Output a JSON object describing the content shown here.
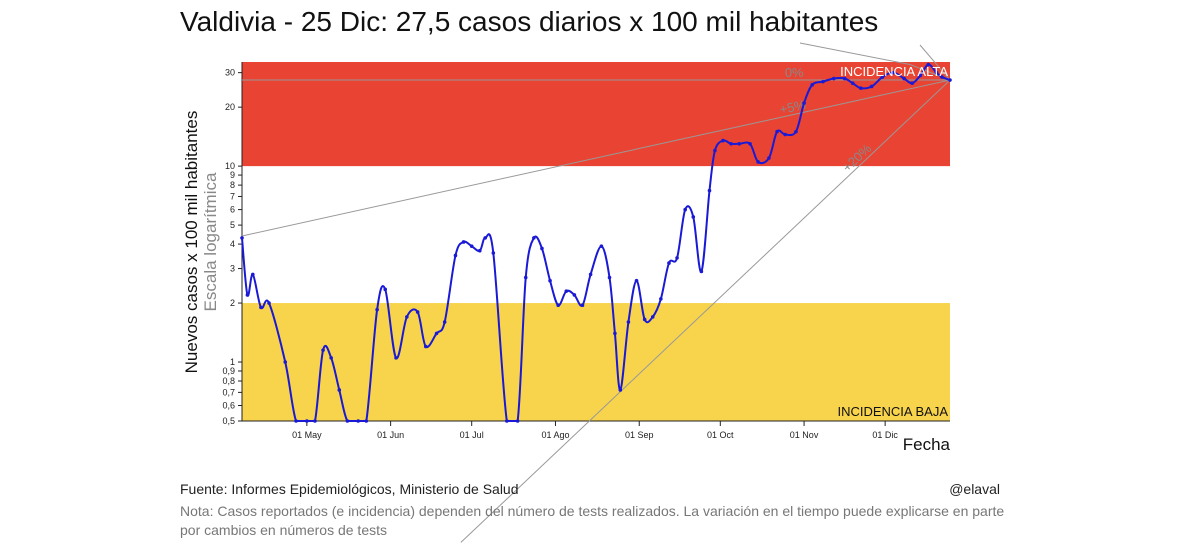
{
  "title": "Valdivia - 25 Dic: 27,5 casos diarios x 100 mil habitantes",
  "footer": {
    "source": "Fuente: Informes Epidemiológicos, Ministerio de Salud",
    "handle": "@elaval",
    "note": "Nota: Casos reportados (e incidencia) dependen del número de tests realizados. La variación en el tiempo puede explicarse en parte por cambios en números de tests"
  },
  "colors": {
    "line": "#1a1ad6",
    "high_band": "#e94433",
    "low_band": "#f7d44c",
    "ref_lines": "#999999"
  },
  "chart_data": {
    "type": "line",
    "xlabel": "Fecha",
    "ylabel": "Nuevos casos x 100 mil habitantes",
    "ylabel_sub": "Escala logarítmica",
    "yscale": "log",
    "ylim": [
      0.5,
      34
    ],
    "xlim": [
      "2020-04-07",
      "2020-12-25"
    ],
    "x_ticks": [
      {
        "label": "01 May",
        "date": "2020-05-01"
      },
      {
        "label": "01 Jun",
        "date": "2020-06-01"
      },
      {
        "label": "01 Jul",
        "date": "2020-07-01"
      },
      {
        "label": "01 Ago",
        "date": "2020-08-01"
      },
      {
        "label": "01 Sep",
        "date": "2020-09-01"
      },
      {
        "label": "01 Oct",
        "date": "2020-10-01"
      },
      {
        "label": "01 Nov",
        "date": "2020-11-01"
      },
      {
        "label": "01 Dic",
        "date": "2020-12-01"
      }
    ],
    "y_ticks": [
      {
        "label": "0,5",
        "value": 0.5
      },
      {
        "label": "0,6",
        "value": 0.6
      },
      {
        "label": "0,7",
        "value": 0.7
      },
      {
        "label": "0,8",
        "value": 0.8
      },
      {
        "label": "0,9",
        "value": 0.9
      },
      {
        "label": "1",
        "value": 1
      },
      {
        "label": "2",
        "value": 2
      },
      {
        "label": "3",
        "value": 3
      },
      {
        "label": "4",
        "value": 4
      },
      {
        "label": "5",
        "value": 5
      },
      {
        "label": "6",
        "value": 6
      },
      {
        "label": "7",
        "value": 7
      },
      {
        "label": "8",
        "value": 8
      },
      {
        "label": "9",
        "value": 9
      },
      {
        "label": "10",
        "value": 10
      },
      {
        "label": "20",
        "value": 20
      },
      {
        "label": "30",
        "value": 30
      }
    ],
    "bands": [
      {
        "label": "INCIDENCIA ALTA",
        "from": 10,
        "to": 34
      },
      {
        "label": "INCIDENCIA BAJA",
        "from": 0.5,
        "to": 2
      }
    ],
    "reference_lines": [
      {
        "label": "0%",
        "start": {
          "x": "2020-04-07",
          "y": 27.5
        },
        "end": {
          "x": "2020-12-25",
          "y": 27.5
        }
      },
      {
        "label": "+5%",
        "start": {
          "x": "2020-04-07",
          "y": 4.4
        },
        "end": {
          "x": "2020-12-25",
          "y": 27.5
        }
      },
      {
        "label": "+20%",
        "start": {
          "x": "2020-06-27",
          "y": 0.12
        },
        "end": {
          "x": "2020-12-25",
          "y": 27.5
        }
      }
    ],
    "series": [
      {
        "points": [
          {
            "x": "2020-04-07",
            "y": 4.3
          },
          {
            "x": "2020-04-09",
            "y": 2.2
          },
          {
            "x": "2020-04-11",
            "y": 2.8
          },
          {
            "x": "2020-04-14",
            "y": 1.9
          },
          {
            "x": "2020-04-17",
            "y": 2.0
          },
          {
            "x": "2020-04-23",
            "y": 1.0
          },
          {
            "x": "2020-04-27",
            "y": 0.5
          },
          {
            "x": "2020-05-01",
            "y": 0.5
          },
          {
            "x": "2020-05-04",
            "y": 0.5
          },
          {
            "x": "2020-05-07",
            "y": 1.15
          },
          {
            "x": "2020-05-10",
            "y": 1.05
          },
          {
            "x": "2020-05-13",
            "y": 0.72
          },
          {
            "x": "2020-05-16",
            "y": 0.5
          },
          {
            "x": "2020-05-20",
            "y": 0.5
          },
          {
            "x": "2020-05-23",
            "y": 0.5
          },
          {
            "x": "2020-05-27",
            "y": 1.85
          },
          {
            "x": "2020-05-30",
            "y": 2.35
          },
          {
            "x": "2020-06-03",
            "y": 1.05
          },
          {
            "x": "2020-06-07",
            "y": 1.7
          },
          {
            "x": "2020-06-11",
            "y": 1.8
          },
          {
            "x": "2020-06-14",
            "y": 1.2
          },
          {
            "x": "2020-06-18",
            "y": 1.4
          },
          {
            "x": "2020-06-21",
            "y": 1.6
          },
          {
            "x": "2020-06-25",
            "y": 3.5
          },
          {
            "x": "2020-06-28",
            "y": 4.1
          },
          {
            "x": "2020-07-01",
            "y": 3.9
          },
          {
            "x": "2020-07-04",
            "y": 3.7
          },
          {
            "x": "2020-07-06",
            "y": 4.3
          },
          {
            "x": "2020-07-09",
            "y": 3.6
          },
          {
            "x": "2020-07-14",
            "y": 0.5
          },
          {
            "x": "2020-07-18",
            "y": 0.5
          },
          {
            "x": "2020-07-21",
            "y": 2.7
          },
          {
            "x": "2020-07-24",
            "y": 4.3
          },
          {
            "x": "2020-07-27",
            "y": 3.8
          },
          {
            "x": "2020-07-30",
            "y": 2.6
          },
          {
            "x": "2020-08-02",
            "y": 1.95
          },
          {
            "x": "2020-08-05",
            "y": 2.3
          },
          {
            "x": "2020-08-08",
            "y": 2.2
          },
          {
            "x": "2020-08-11",
            "y": 1.95
          },
          {
            "x": "2020-08-14",
            "y": 2.8
          },
          {
            "x": "2020-08-18",
            "y": 3.9
          },
          {
            "x": "2020-08-21",
            "y": 2.7
          },
          {
            "x": "2020-08-23",
            "y": 1.4
          },
          {
            "x": "2020-08-25",
            "y": 0.72
          },
          {
            "x": "2020-08-28",
            "y": 1.6
          },
          {
            "x": "2020-08-31",
            "y": 2.6
          },
          {
            "x": "2020-09-03",
            "y": 1.65
          },
          {
            "x": "2020-09-06",
            "y": 1.7
          },
          {
            "x": "2020-09-09",
            "y": 2.1
          },
          {
            "x": "2020-09-12",
            "y": 3.2
          },
          {
            "x": "2020-09-15",
            "y": 3.4
          },
          {
            "x": "2020-09-18",
            "y": 6.0
          },
          {
            "x": "2020-09-21",
            "y": 5.5
          },
          {
            "x": "2020-09-24",
            "y": 2.9
          },
          {
            "x": "2020-09-27",
            "y": 7.5
          },
          {
            "x": "2020-09-29",
            "y": 12.0
          },
          {
            "x": "2020-10-02",
            "y": 13.5
          },
          {
            "x": "2020-10-05",
            "y": 13.0
          },
          {
            "x": "2020-10-08",
            "y": 13.0
          },
          {
            "x": "2020-10-12",
            "y": 13.0
          },
          {
            "x": "2020-10-15",
            "y": 10.5
          },
          {
            "x": "2020-10-19",
            "y": 11.0
          },
          {
            "x": "2020-10-22",
            "y": 15.0
          },
          {
            "x": "2020-10-25",
            "y": 14.5
          },
          {
            "x": "2020-10-29",
            "y": 15.0
          },
          {
            "x": "2020-11-01",
            "y": 21.0
          },
          {
            "x": "2020-11-04",
            "y": 26.0
          },
          {
            "x": "2020-11-08",
            "y": 27.0
          },
          {
            "x": "2020-11-12",
            "y": 28.0
          },
          {
            "x": "2020-11-16",
            "y": 28.0
          },
          {
            "x": "2020-11-19",
            "y": 26.5
          },
          {
            "x": "2020-11-22",
            "y": 25.0
          },
          {
            "x": "2020-11-26",
            "y": 25.5
          },
          {
            "x": "2020-11-30",
            "y": 28.5
          },
          {
            "x": "2020-12-04",
            "y": 30.0
          },
          {
            "x": "2020-12-08",
            "y": 28.0
          },
          {
            "x": "2020-12-11",
            "y": 26.5
          },
          {
            "x": "2020-12-14",
            "y": 29.0
          },
          {
            "x": "2020-12-17",
            "y": 33.0
          },
          {
            "x": "2020-12-20",
            "y": 30.0
          },
          {
            "x": "2020-12-22",
            "y": 28.5
          },
          {
            "x": "2020-12-25",
            "y": 27.5
          }
        ]
      }
    ]
  }
}
